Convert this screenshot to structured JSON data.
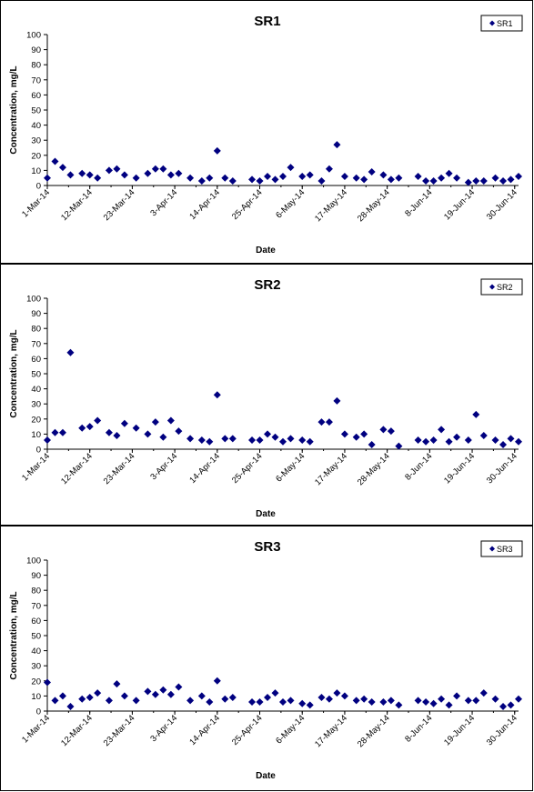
{
  "chart_data": [
    {
      "type": "scatter",
      "title": "SR1",
      "xlabel": "Date",
      "ylabel": "Concentration, mg/L",
      "ylim": [
        0,
        100
      ],
      "yticks": [
        0,
        10,
        20,
        30,
        40,
        50,
        60,
        70,
        80,
        90,
        100
      ],
      "xticks": [
        "1-Mar-14",
        "12-Mar-14",
        "23-Mar-14",
        "3-Apr-14",
        "14-Apr-14",
        "25-Apr-14",
        "6-May-14",
        "17-May-14",
        "28-May-14",
        "8-Jun-14",
        "19-Jun-14",
        "30-Jun-14"
      ],
      "xlim": [
        "2014-03-01",
        "2014-06-30"
      ],
      "grid": false,
      "legend": "top-right",
      "marker_color": "#000080",
      "series": [
        {
          "name": "SR1",
          "points": [
            [
              "2014-03-01",
              5
            ],
            [
              "2014-03-03",
              16
            ],
            [
              "2014-03-05",
              12
            ],
            [
              "2014-03-07",
              7
            ],
            [
              "2014-03-10",
              8
            ],
            [
              "2014-03-12",
              7
            ],
            [
              "2014-03-14",
              5
            ],
            [
              "2014-03-17",
              10
            ],
            [
              "2014-03-19",
              11
            ],
            [
              "2014-03-21",
              7
            ],
            [
              "2014-03-24",
              5
            ],
            [
              "2014-03-27",
              8
            ],
            [
              "2014-03-29",
              11
            ],
            [
              "2014-03-31",
              11
            ],
            [
              "2014-04-02",
              7
            ],
            [
              "2014-04-04",
              8
            ],
            [
              "2014-04-07",
              5
            ],
            [
              "2014-04-10",
              3
            ],
            [
              "2014-04-12",
              5
            ],
            [
              "2014-04-14",
              23
            ],
            [
              "2014-04-16",
              5
            ],
            [
              "2014-04-18",
              3
            ],
            [
              "2014-04-23",
              4
            ],
            [
              "2014-04-25",
              3
            ],
            [
              "2014-04-27",
              6
            ],
            [
              "2014-04-29",
              4
            ],
            [
              "2014-05-01",
              6
            ],
            [
              "2014-05-03",
              12
            ],
            [
              "2014-05-06",
              6
            ],
            [
              "2014-05-08",
              7
            ],
            [
              "2014-05-11",
              3
            ],
            [
              "2014-05-13",
              11
            ],
            [
              "2014-05-15",
              27
            ],
            [
              "2014-05-17",
              6
            ],
            [
              "2014-05-20",
              5
            ],
            [
              "2014-05-22",
              4
            ],
            [
              "2014-05-24",
              9
            ],
            [
              "2014-05-27",
              7
            ],
            [
              "2014-05-29",
              4
            ],
            [
              "2014-05-31",
              5
            ],
            [
              "2014-06-05",
              6
            ],
            [
              "2014-06-07",
              3
            ],
            [
              "2014-06-09",
              3
            ],
            [
              "2014-06-11",
              5
            ],
            [
              "2014-06-13",
              8
            ],
            [
              "2014-06-15",
              5
            ],
            [
              "2014-06-18",
              2
            ],
            [
              "2014-06-20",
              3
            ],
            [
              "2014-06-22",
              3
            ],
            [
              "2014-06-25",
              5
            ],
            [
              "2014-06-27",
              3
            ],
            [
              "2014-06-29",
              4
            ],
            [
              "2014-07-01",
              6
            ]
          ]
        }
      ]
    },
    {
      "type": "scatter",
      "title": "SR2",
      "xlabel": "Date",
      "ylabel": "Concentration, mg/L",
      "ylim": [
        0,
        100
      ],
      "yticks": [
        0,
        10,
        20,
        30,
        40,
        50,
        60,
        70,
        80,
        90,
        100
      ],
      "xticks": [
        "1-Mar-14",
        "12-Mar-14",
        "23-Mar-14",
        "3-Apr-14",
        "14-Apr-14",
        "25-Apr-14",
        "6-May-14",
        "17-May-14",
        "28-May-14",
        "8-Jun-14",
        "19-Jun-14",
        "30-Jun-14"
      ],
      "xlim": [
        "2014-03-01",
        "2014-06-30"
      ],
      "grid": false,
      "legend": "top-right",
      "marker_color": "#000080",
      "series": [
        {
          "name": "SR2",
          "points": [
            [
              "2014-03-01",
              6
            ],
            [
              "2014-03-03",
              11
            ],
            [
              "2014-03-05",
              11
            ],
            [
              "2014-03-07",
              64
            ],
            [
              "2014-03-10",
              14
            ],
            [
              "2014-03-12",
              15
            ],
            [
              "2014-03-14",
              19
            ],
            [
              "2014-03-17",
              11
            ],
            [
              "2014-03-19",
              9
            ],
            [
              "2014-03-21",
              17
            ],
            [
              "2014-03-24",
              14
            ],
            [
              "2014-03-27",
              10
            ],
            [
              "2014-03-29",
              18
            ],
            [
              "2014-03-31",
              8
            ],
            [
              "2014-04-02",
              19
            ],
            [
              "2014-04-04",
              12
            ],
            [
              "2014-04-07",
              7
            ],
            [
              "2014-04-10",
              6
            ],
            [
              "2014-04-12",
              5
            ],
            [
              "2014-04-14",
              36
            ],
            [
              "2014-04-16",
              7
            ],
            [
              "2014-04-18",
              7
            ],
            [
              "2014-04-23",
              6
            ],
            [
              "2014-04-25",
              6
            ],
            [
              "2014-04-27",
              10
            ],
            [
              "2014-04-29",
              8
            ],
            [
              "2014-05-01",
              5
            ],
            [
              "2014-05-03",
              7
            ],
            [
              "2014-05-06",
              6
            ],
            [
              "2014-05-08",
              5
            ],
            [
              "2014-05-11",
              18
            ],
            [
              "2014-05-13",
              18
            ],
            [
              "2014-05-15",
              32
            ],
            [
              "2014-05-17",
              10
            ],
            [
              "2014-05-20",
              8
            ],
            [
              "2014-05-22",
              10
            ],
            [
              "2014-05-24",
              3
            ],
            [
              "2014-05-27",
              13
            ],
            [
              "2014-05-29",
              12
            ],
            [
              "2014-05-31",
              2
            ],
            [
              "2014-06-05",
              6
            ],
            [
              "2014-06-07",
              5
            ],
            [
              "2014-06-09",
              6
            ],
            [
              "2014-06-11",
              13
            ],
            [
              "2014-06-13",
              5
            ],
            [
              "2014-06-15",
              8
            ],
            [
              "2014-06-18",
              6
            ],
            [
              "2014-06-20",
              23
            ],
            [
              "2014-06-22",
              9
            ],
            [
              "2014-06-25",
              6
            ],
            [
              "2014-06-27",
              3
            ],
            [
              "2014-06-29",
              7
            ],
            [
              "2014-07-01",
              5
            ]
          ]
        }
      ]
    },
    {
      "type": "scatter",
      "title": "SR3",
      "xlabel": "Date",
      "ylabel": "Concentration, mg/L",
      "ylim": [
        0,
        100
      ],
      "yticks": [
        0,
        10,
        20,
        30,
        40,
        50,
        60,
        70,
        80,
        90,
        100
      ],
      "xticks": [
        "1-Mar-14",
        "12-Mar-14",
        "23-Mar-14",
        "3-Apr-14",
        "14-Apr-14",
        "25-Apr-14",
        "6-May-14",
        "17-May-14",
        "28-May-14",
        "8-Jun-14",
        "19-Jun-14",
        "30-Jun-14"
      ],
      "xlim": [
        "2014-03-01",
        "2014-06-30"
      ],
      "grid": false,
      "legend": "top-right",
      "marker_color": "#000080",
      "series": [
        {
          "name": "SR3",
          "points": [
            [
              "2014-03-01",
              19
            ],
            [
              "2014-03-03",
              7
            ],
            [
              "2014-03-05",
              10
            ],
            [
              "2014-03-07",
              3
            ],
            [
              "2014-03-10",
              8
            ],
            [
              "2014-03-12",
              9
            ],
            [
              "2014-03-14",
              12
            ],
            [
              "2014-03-17",
              7
            ],
            [
              "2014-03-19",
              18
            ],
            [
              "2014-03-21",
              10
            ],
            [
              "2014-03-24",
              7
            ],
            [
              "2014-03-27",
              13
            ],
            [
              "2014-03-29",
              11
            ],
            [
              "2014-03-31",
              14
            ],
            [
              "2014-04-02",
              11
            ],
            [
              "2014-04-04",
              16
            ],
            [
              "2014-04-07",
              7
            ],
            [
              "2014-04-10",
              10
            ],
            [
              "2014-04-12",
              6
            ],
            [
              "2014-04-14",
              20
            ],
            [
              "2014-04-16",
              8
            ],
            [
              "2014-04-18",
              9
            ],
            [
              "2014-04-23",
              6
            ],
            [
              "2014-04-25",
              6
            ],
            [
              "2014-04-27",
              9
            ],
            [
              "2014-04-29",
              12
            ],
            [
              "2014-05-01",
              6
            ],
            [
              "2014-05-03",
              7
            ],
            [
              "2014-05-06",
              5
            ],
            [
              "2014-05-08",
              4
            ],
            [
              "2014-05-11",
              9
            ],
            [
              "2014-05-13",
              8
            ],
            [
              "2014-05-15",
              12
            ],
            [
              "2014-05-17",
              10
            ],
            [
              "2014-05-20",
              7
            ],
            [
              "2014-05-22",
              8
            ],
            [
              "2014-05-24",
              6
            ],
            [
              "2014-05-27",
              6
            ],
            [
              "2014-05-29",
              7
            ],
            [
              "2014-05-31",
              4
            ],
            [
              "2014-06-05",
              7
            ],
            [
              "2014-06-07",
              6
            ],
            [
              "2014-06-09",
              5
            ],
            [
              "2014-06-11",
              8
            ],
            [
              "2014-06-13",
              4
            ],
            [
              "2014-06-15",
              10
            ],
            [
              "2014-06-18",
              7
            ],
            [
              "2014-06-20",
              7
            ],
            [
              "2014-06-22",
              12
            ],
            [
              "2014-06-25",
              8
            ],
            [
              "2014-06-27",
              3
            ],
            [
              "2014-06-29",
              4
            ],
            [
              "2014-07-01",
              8
            ]
          ]
        }
      ]
    }
  ]
}
